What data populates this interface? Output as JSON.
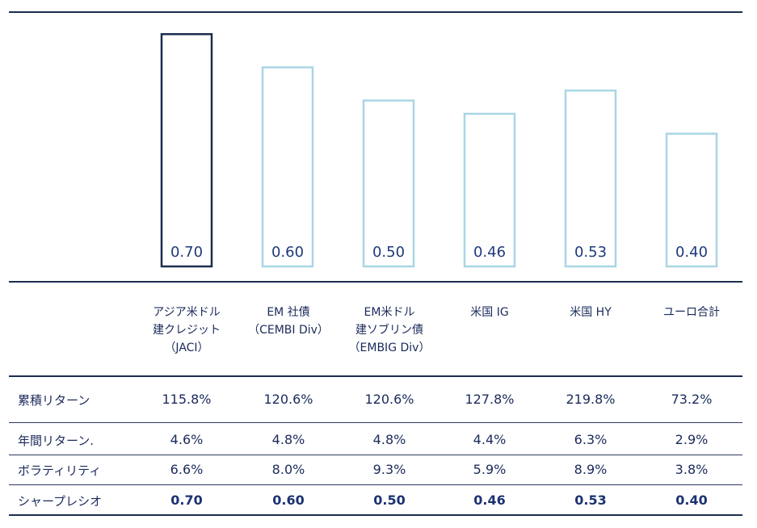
{
  "chart_data": {
    "type": "bar",
    "title": "",
    "xlabel": "",
    "ylabel": "",
    "ylim": [
      0,
      0.75
    ],
    "categories": [
      "アジア米ドル\n建クレジット\n（JACI）",
      "EM 社債\n（CEMBI Div）",
      "EM米ドル\n建ソブリン債\n（EMBIG Div）",
      "米国 IG",
      "米国 HY",
      "ユーロ合計"
    ],
    "values": [
      0.7,
      0.6,
      0.5,
      0.46,
      0.53,
      0.4
    ],
    "value_labels": [
      "0.70",
      "0.60",
      "0.50",
      "0.46",
      "0.53",
      "0.40"
    ],
    "highlight_index": 0,
    "colors": {
      "highlight": "#1c2d4f",
      "normal": "#a9d6e5",
      "label": "#1f3a7a"
    }
  },
  "table": {
    "rows": [
      {
        "label": "累積リターン",
        "values": [
          "115.8%",
          "120.6%",
          "120.6%",
          "127.8%",
          "219.8%",
          "73.2%"
        ],
        "bold": false
      },
      {
        "label": "年間リターン.",
        "values": [
          "4.6%",
          "4.8%",
          "4.8%",
          "4.4%",
          "6.3%",
          "2.9%"
        ],
        "bold": false
      },
      {
        "label": "ボラティリティ",
        "values": [
          "6.6%",
          "8.0%",
          "9.3%",
          "5.9%",
          "8.9%",
          "3.8%"
        ],
        "bold": false
      },
      {
        "label": "シャープレシオ",
        "values": [
          "0.70",
          "0.60",
          "0.50",
          "0.46",
          "0.53",
          "0.40"
        ],
        "bold": true
      }
    ]
  }
}
